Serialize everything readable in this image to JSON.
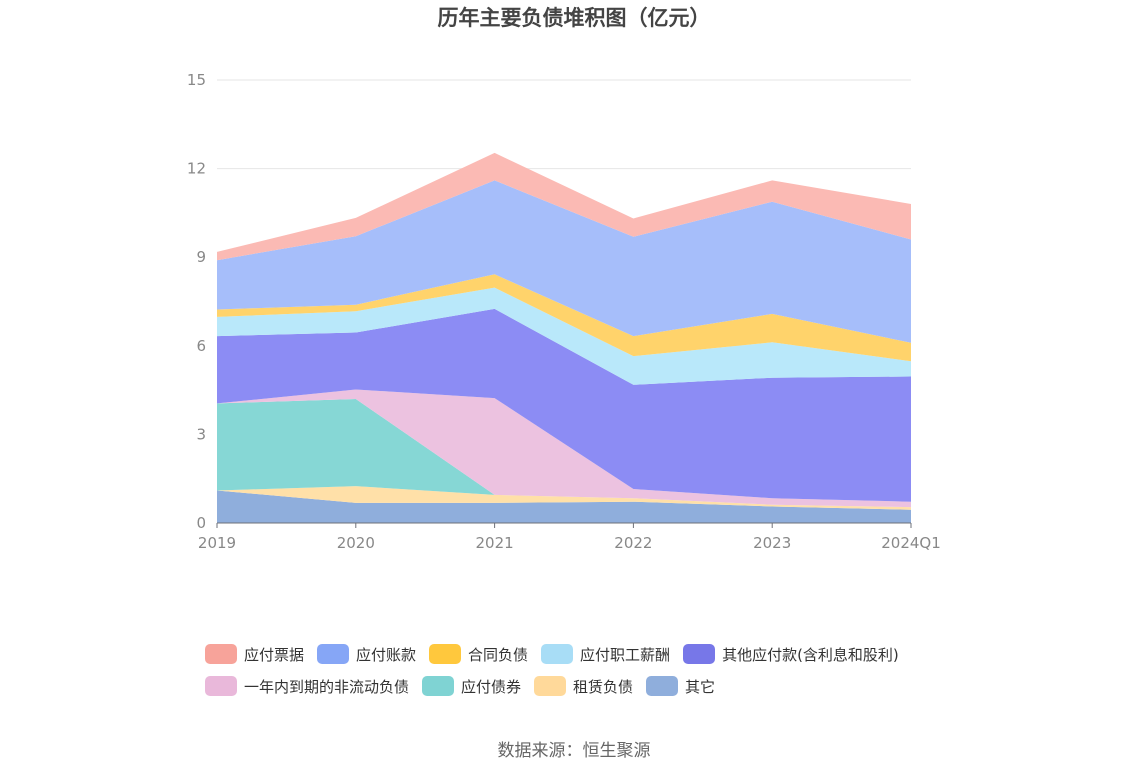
{
  "title": "历年主要负债堆积图（亿元）",
  "source": "数据来源：恒生聚源",
  "chart_data": {
    "type": "area",
    "stacked": true,
    "title": "历年主要负债堆积图（亿元）",
    "categories": [
      "2019",
      "2020",
      "2021",
      "2022",
      "2023",
      "2024Q1"
    ],
    "ylim": [
      0,
      15
    ],
    "yticks": [
      "0",
      "3",
      "6",
      "9",
      "12",
      "15"
    ],
    "grid": true,
    "legend_position": "bottom",
    "series": [
      {
        "name": "其它",
        "color": "#8FAEDC",
        "values": [
          1.1,
          0.68,
          0.68,
          0.72,
          0.56,
          0.45
        ]
      },
      {
        "name": "租赁负债",
        "color": "#FFE0A8",
        "values": [
          0.0,
          0.57,
          0.27,
          0.12,
          0.06,
          0.09
        ]
      },
      {
        "name": "应付债券",
        "color": "#86D7D5",
        "values": [
          2.95,
          2.95,
          0.0,
          0.0,
          0.0,
          0.0
        ]
      },
      {
        "name": "一年内到期的非流动负债",
        "color": "#ECC2E0",
        "values": [
          0.0,
          0.32,
          3.28,
          0.31,
          0.22,
          0.18
        ]
      },
      {
        "name": "其他应付款(含利息和股利)",
        "color": "#8C8CF4",
        "values": [
          2.28,
          1.93,
          3.02,
          3.53,
          4.08,
          4.24
        ]
      },
      {
        "name": "应付职工薪酬",
        "color": "#B9E8FA",
        "values": [
          0.65,
          0.72,
          0.72,
          0.97,
          1.2,
          0.52
        ]
      },
      {
        "name": "合同负债",
        "color": "#FFD36B",
        "values": [
          0.25,
          0.22,
          0.45,
          0.68,
          0.96,
          0.62
        ]
      },
      {
        "name": "应付账款",
        "color": "#A6BEFA",
        "values": [
          1.67,
          2.32,
          3.18,
          3.36,
          3.8,
          3.5
        ]
      },
      {
        "name": "应付票据",
        "color": "#FBBAB4",
        "values": [
          0.28,
          0.62,
          0.93,
          0.62,
          0.72,
          1.2
        ]
      }
    ]
  },
  "legend": [
    {
      "label": "应付票据",
      "color": "#F7A39A"
    },
    {
      "label": "应付账款",
      "color": "#86A6F6"
    },
    {
      "label": "合同负债",
      "color": "#FFC83D"
    },
    {
      "label": "应付职工薪酬",
      "color": "#A8DDF6"
    },
    {
      "label": "其他应付款(含利息和股利)",
      "color": "#7777E8"
    },
    {
      "label": "一年内到期的非流动负债",
      "color": "#E9B8DA"
    },
    {
      "label": "应付债券",
      "color": "#7FD3D3"
    },
    {
      "label": "租赁负债",
      "color": "#FFD99A"
    },
    {
      "label": "其它",
      "color": "#8FAEDC"
    }
  ]
}
